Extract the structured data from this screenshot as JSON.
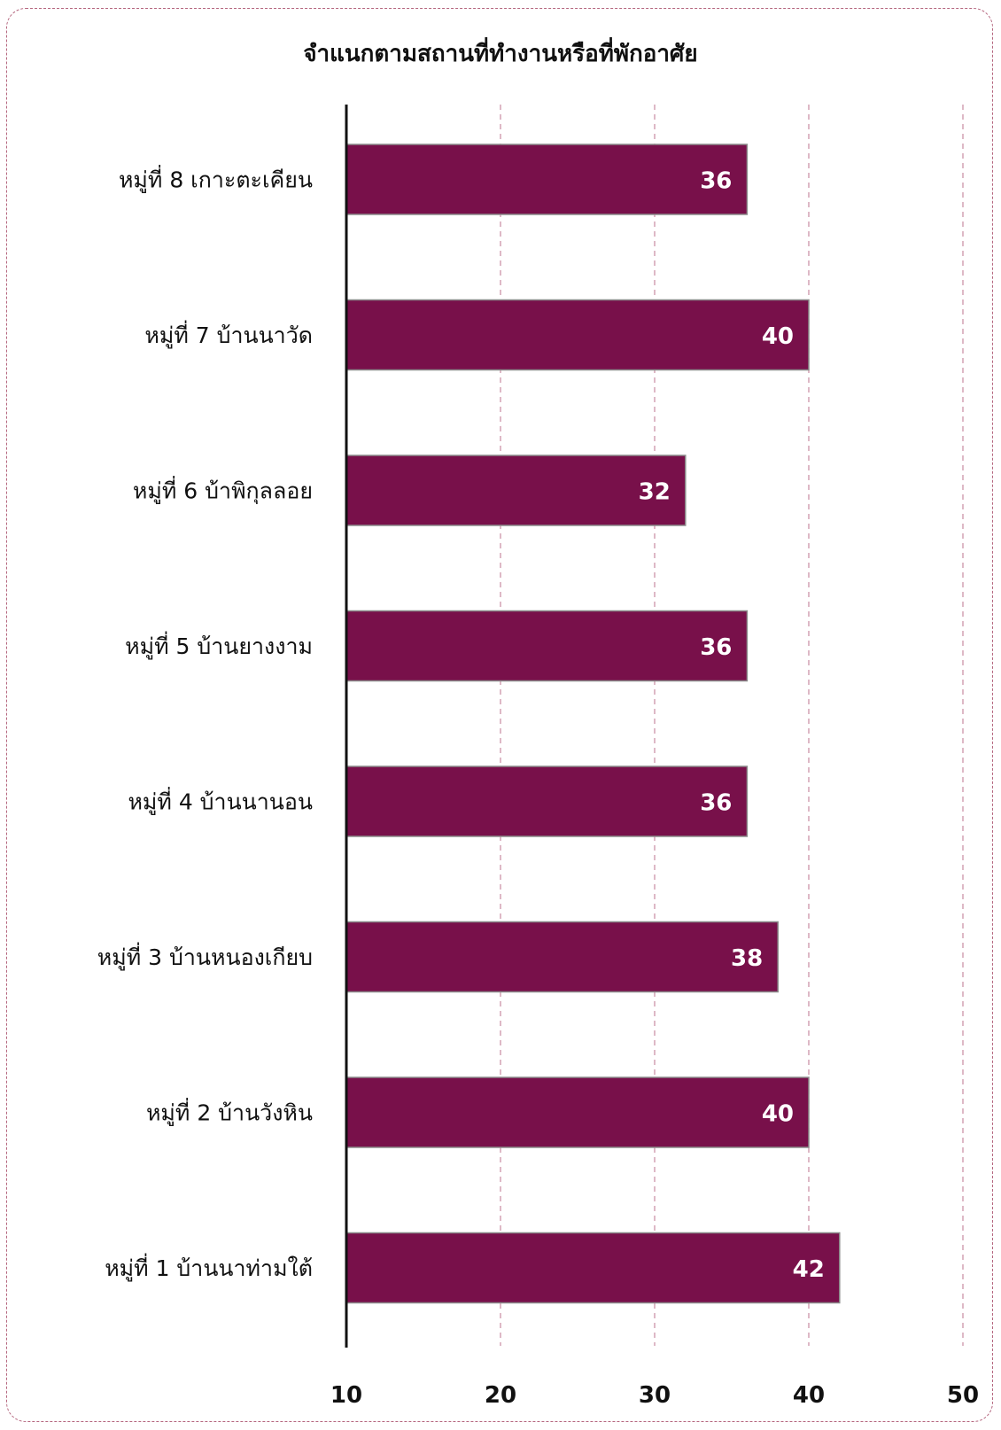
{
  "chart_data": {
    "type": "bar",
    "orientation": "horizontal",
    "title": "จำแนกตามสถานที่ทำงานหรือที่พักอาศัย",
    "categories": [
      "หมู่ที่ 8 เกาะตะเคียน",
      "หมู่ที่ 7 บ้านนาวัด",
      "หมู่ที่ 6 บ้าพิกุลลอย",
      "หมู่ที่ 5 บ้านยางงาม",
      "หมู่ที่ 4 บ้านนานอน",
      "หมู่ที่ 3 บ้านหนองเกียบ",
      "หมู่ที่ 2 บ้านวังหิน",
      "หมู่ที่ 1 บ้านนาท่ามใต้"
    ],
    "values": [
      36,
      40,
      32,
      36,
      36,
      38,
      40,
      42
    ],
    "xlim": [
      10,
      50
    ],
    "xticks": [
      "10",
      "20",
      "30",
      "40",
      "50"
    ],
    "grid": true,
    "bar_color": "#78104a",
    "grid_color": "#c98aa0"
  }
}
